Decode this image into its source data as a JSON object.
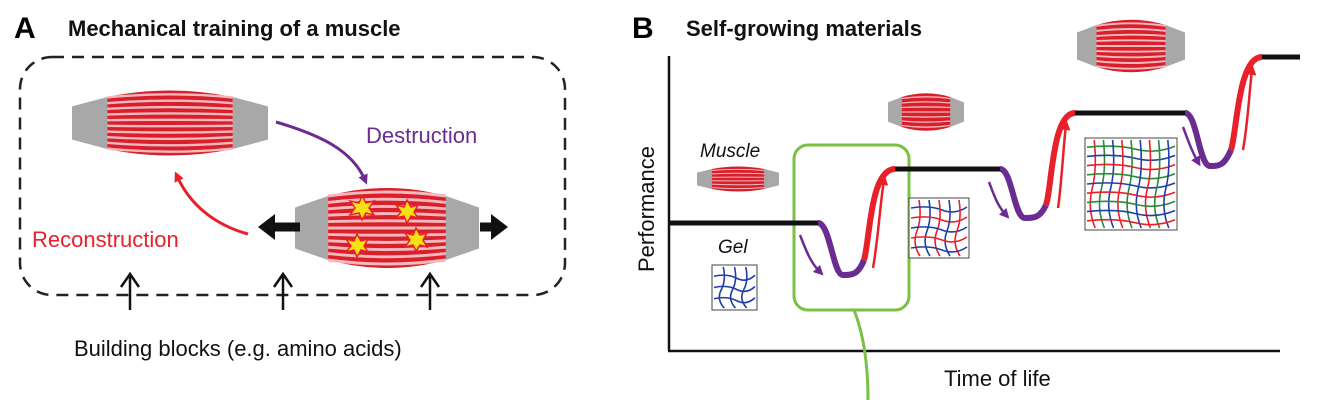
{
  "panel_a": {
    "letter": "A",
    "title": "Mechanical training of a muscle",
    "destruction_label": "Destruction",
    "reconstruction_label": "Reconstruction",
    "building_blocks_label": "Building blocks (e.g. amino acids)"
  },
  "panel_b": {
    "letter": "B",
    "title": "Self-growing materials",
    "y_axis_label": "Performance",
    "x_axis_label": "Time of life",
    "muscle_label": "Muscle",
    "gel_label": "Gel"
  },
  "colors": {
    "destruction": "#6a2c91",
    "reconstruction": "#e8202a",
    "baseline": "#111111",
    "highlight_box": "#7ac143",
    "muscle_red": "#d7202c",
    "muscle_pink": "#f4b8bd",
    "tendon_gray": "#a8a8a8",
    "grid_blue": "#1f3fa8",
    "grid_red": "#e8202a",
    "grid_green": "#2a8a3a"
  }
}
